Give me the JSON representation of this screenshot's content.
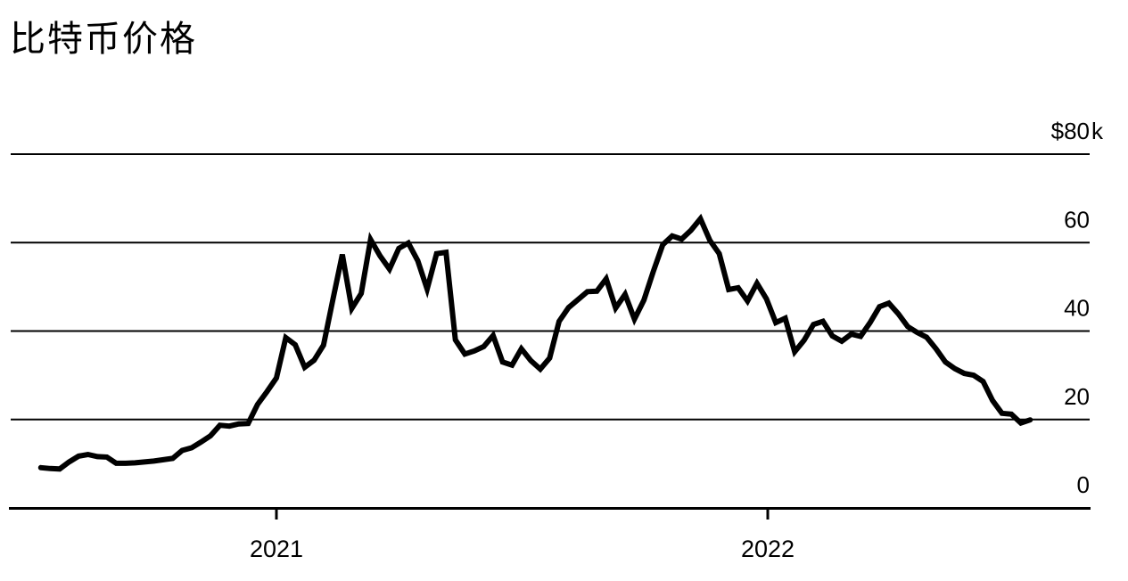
{
  "title": "比特币价格",
  "colors": {
    "background": "#ffffff",
    "text": "#000000",
    "gridline": "#000000",
    "axis": "#000000",
    "line": "#000000"
  },
  "chart_data": {
    "type": "line",
    "title": "比特币价格",
    "xlabel": "",
    "ylabel": "",
    "grid": "horizontal",
    "legend": "none",
    "y_axis": {
      "side": "right",
      "range": [
        0,
        80
      ],
      "unit": "thousand USD",
      "ticks": [
        {
          "value": 80,
          "label": "$80",
          "suffix": "k"
        },
        {
          "value": 60,
          "label": "60",
          "suffix": ""
        },
        {
          "value": 40,
          "label": "40",
          "suffix": ""
        },
        {
          "value": 20,
          "label": "20",
          "suffix": ""
        },
        {
          "value": 0,
          "label": "0",
          "suffix": ""
        }
      ]
    },
    "x_axis": {
      "ticks": [
        {
          "label": "2021",
          "year": 2021
        },
        {
          "label": "2022",
          "year": 2022
        }
      ]
    },
    "series": [
      {
        "name": "比特币价格",
        "unit_note": "price in $k, weekly",
        "x_start_year": 2020.5205,
        "x_step_years": 0.0191781,
        "values": [
          9.1,
          8.9,
          8.8,
          10.4,
          11.7,
          12.1,
          11.6,
          11.5,
          10.1,
          10.1,
          10.2,
          10.4,
          10.6,
          10.9,
          11.2,
          13.0,
          13.6,
          14.9,
          16.3,
          18.7,
          18.5,
          19.0,
          19.1,
          23.4,
          26.3,
          29.4,
          38.5,
          36.9,
          31.8,
          33.4,
          36.8,
          47.2,
          57.3,
          45.1,
          48.5,
          60.7,
          57.0,
          54.0,
          58.7,
          59.9,
          55.9,
          49.5,
          57.5,
          57.8,
          38.0,
          34.8,
          35.5,
          36.5,
          39.0,
          33.0,
          32.3,
          36.0,
          33.3,
          31.4,
          33.9,
          42.2,
          45.3,
          47.1,
          48.9,
          49.0,
          51.8,
          45.2,
          48.3,
          42.7,
          47.0,
          53.5,
          59.5,
          61.5,
          60.8,
          62.8,
          65.4,
          60.5,
          57.5,
          49.4,
          49.8,
          46.8,
          50.8,
          47.3,
          41.9,
          42.9,
          35.3,
          37.9,
          41.5,
          42.2,
          38.9,
          37.7,
          39.3,
          38.8,
          41.9,
          45.5,
          46.3,
          43.9,
          41.0,
          39.7,
          38.6,
          36.0,
          33.0,
          31.5,
          30.4,
          30.0,
          28.6,
          24.3,
          21.4,
          21.2,
          19.2,
          19.9
        ]
      }
    ]
  }
}
